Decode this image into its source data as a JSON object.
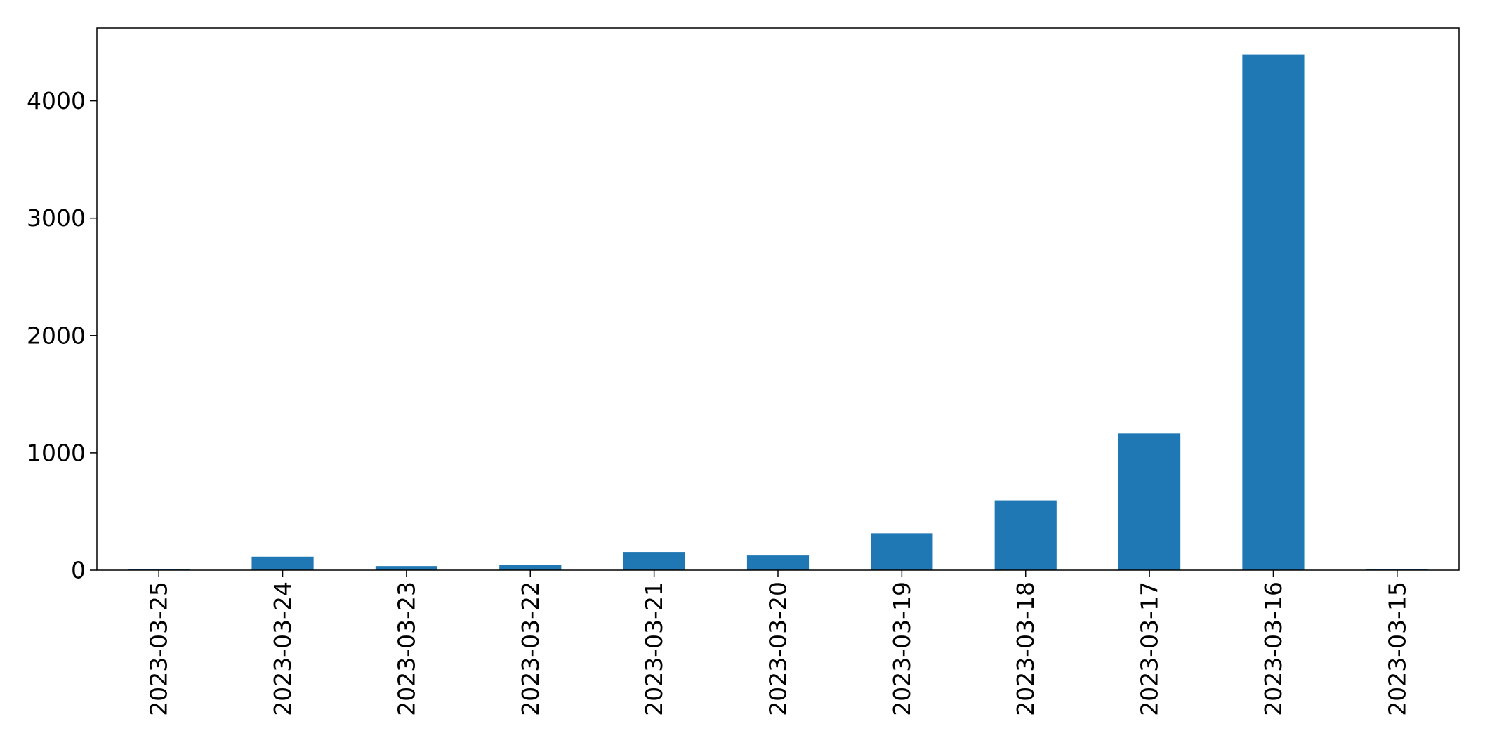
{
  "chart_data": {
    "type": "bar",
    "title": "",
    "xlabel": "",
    "ylabel": "",
    "categories": [
      "2023-03-25",
      "2023-03-24",
      "2023-03-23",
      "2023-03-22",
      "2023-03-21",
      "2023-03-20",
      "2023-03-19",
      "2023-03-18",
      "2023-03-17",
      "2023-03-16",
      "2023-03-15"
    ],
    "values": [
      10,
      115,
      35,
      45,
      155,
      125,
      315,
      595,
      1165,
      4395,
      10
    ],
    "ylim": [
      0,
      4620
    ],
    "yticks": [
      0,
      1000,
      2000,
      3000,
      4000
    ],
    "ytick_labels": [
      "0",
      "1000",
      "2000",
      "3000",
      "4000"
    ],
    "grid": false,
    "legend": "none",
    "colors": {
      "bar": "#1f77b4",
      "axis": "#000000",
      "background": "#ffffff"
    }
  }
}
